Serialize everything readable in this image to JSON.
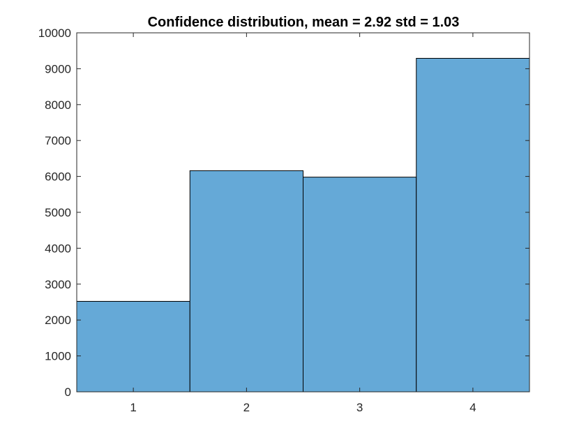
{
  "chart_data": {
    "type": "bar",
    "title": "Confidence distribution, mean = 2.92 std = 1.03",
    "xlabel": "",
    "ylabel": "",
    "categories": [
      "1",
      "2",
      "3",
      "4"
    ],
    "series": [
      {
        "values": [
          2520,
          6160,
          5980,
          9290
        ]
      }
    ],
    "ylim": [
      0,
      10000
    ],
    "xlim": [
      0.5,
      4.5
    ],
    "yticks": [
      "0",
      "1000",
      "2000",
      "3000",
      "4000",
      "5000",
      "6000",
      "7000",
      "8000",
      "9000",
      "10000"
    ],
    "xticks": [
      "1",
      "2",
      "3",
      "4"
    ],
    "bar_width": 1,
    "grid": false,
    "legend": "none",
    "colors": {
      "bar_fill": "#65a9d7",
      "bar_edge": "#000000",
      "axes": "#262626"
    }
  }
}
